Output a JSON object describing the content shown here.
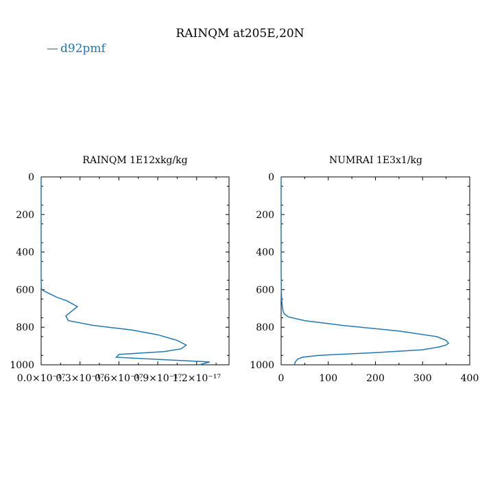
{
  "figure": {
    "title": "RAINQM at205E,20N",
    "legend": [
      {
        "label": "d92pmf",
        "color": "#1f77b4",
        "marker": "—"
      }
    ],
    "line_color": "#1f77b4"
  },
  "chart_data": [
    {
      "type": "line",
      "title": "RAINQM  1E12xkg/kg",
      "xlabel": "",
      "ylabel": "",
      "xlim": [
        0,
        1.45e-17
      ],
      "ylim": [
        1000,
        0
      ],
      "y_inverted": true,
      "x_ticks": [
        0,
        3e-18,
        6e-18,
        9e-18,
        1.2e-17
      ],
      "x_tick_labels": [
        "0.0×10⁻¹⁷",
        "0.3×10⁻¹⁷",
        "0.6×10⁻¹⁷",
        "0.9×10⁻¹⁷",
        "1.2×10⁻¹⁷"
      ],
      "y_ticks": [
        0,
        200,
        400,
        600,
        800,
        1000
      ],
      "y_tick_labels": [
        "0",
        "200",
        "400",
        "600",
        "800",
        "1000"
      ],
      "series": [
        {
          "name": "d92pmf",
          "x": [
            0,
            0,
            0,
            0,
            0,
            2e-20,
            5e-20,
            3e-19,
            1.2e-18,
            2e-18,
            2.8e-18,
            1.9e-18,
            2.1e-18,
            4e-18,
            7e-18,
            9e-18,
            1.05e-17,
            1.12e-17,
            1.08e-17,
            9.5e-18,
            6e-18,
            5.8e-18,
            1.3e-17,
            1.22e-17
          ],
          "y": [
            0,
            200,
            400,
            500,
            560,
            590,
            600,
            610,
            640,
            660,
            690,
            740,
            765,
            790,
            815,
            840,
            870,
            895,
            915,
            930,
            945,
            960,
            985,
            1000
          ]
        }
      ]
    },
    {
      "type": "line",
      "title": "NUMRAI  1E3x1/kg",
      "xlabel": "",
      "ylabel": "",
      "xlim": [
        0,
        400
      ],
      "ylim": [
        1000,
        0
      ],
      "y_inverted": true,
      "x_ticks": [
        0,
        100,
        200,
        300,
        400
      ],
      "x_tick_labels": [
        "0",
        "100",
        "200",
        "300",
        "400"
      ],
      "y_ticks": [
        0,
        200,
        400,
        600,
        800,
        1000
      ],
      "y_tick_labels": [
        "0",
        "200",
        "400",
        "600",
        "800",
        "1000"
      ],
      "series": [
        {
          "name": "d92pmf",
          "x": [
            0,
            0,
            0,
            0.5,
            1,
            2,
            3,
            4,
            7,
            15,
            50,
            130,
            250,
            330,
            350,
            355,
            350,
            335,
            300,
            200,
            120,
            80,
            45,
            35,
            30,
            28
          ],
          "y": [
            0,
            300,
            500,
            600,
            650,
            680,
            700,
            715,
            730,
            745,
            765,
            790,
            820,
            850,
            870,
            885,
            895,
            905,
            920,
            935,
            945,
            950,
            960,
            970,
            985,
            1000
          ]
        }
      ]
    }
  ]
}
